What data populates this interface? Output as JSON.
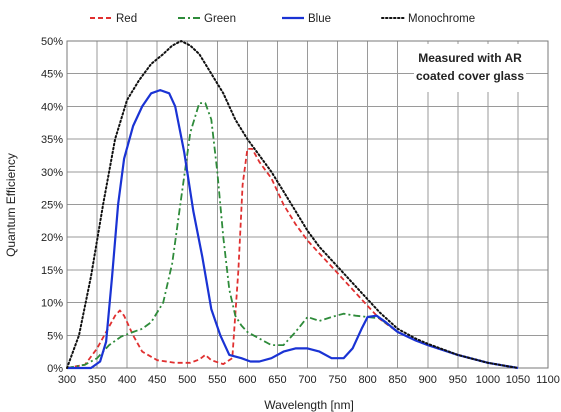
{
  "chart_data": {
    "type": "line",
    "title": "",
    "xlabel": "Wavelength [nm]",
    "ylabel": "Quantum Efficiency",
    "xlim": [
      300,
      1100
    ],
    "ylim": [
      0,
      50
    ],
    "x_ticks": [
      300,
      350,
      400,
      450,
      500,
      550,
      600,
      650,
      700,
      750,
      800,
      850,
      900,
      950,
      1000,
      1050,
      1100
    ],
    "x_tick_labels": [
      "300",
      "350",
      "400",
      "450",
      "500",
      "550",
      "600",
      "650",
      "700",
      "750",
      "800",
      "850",
      "900",
      "950",
      "1000",
      "1050",
      "1100"
    ],
    "y_ticks": [
      0,
      5,
      10,
      15,
      20,
      25,
      30,
      35,
      40,
      45,
      50
    ],
    "y_tick_labels": [
      "0%",
      "5%",
      "10%",
      "15%",
      "20%",
      "25%",
      "30%",
      "35%",
      "40%",
      "45%",
      "50%"
    ],
    "grid": true,
    "legend_position": "top",
    "annotation": [
      "Measured with AR",
      "coated cover glass"
    ],
    "series": [
      {
        "name": "Red",
        "color": "#e03030",
        "dash": "dashed",
        "points": [
          [
            300,
            0
          ],
          [
            330,
            0.5
          ],
          [
            350,
            3
          ],
          [
            365,
            5.5
          ],
          [
            380,
            8
          ],
          [
            388,
            8.8
          ],
          [
            395,
            8
          ],
          [
            410,
            5
          ],
          [
            425,
            2.5
          ],
          [
            450,
            1.2
          ],
          [
            480,
            0.8
          ],
          [
            505,
            0.8
          ],
          [
            520,
            1.3
          ],
          [
            530,
            2
          ],
          [
            540,
            1.2
          ],
          [
            560,
            0.6
          ],
          [
            575,
            1.5
          ],
          [
            585,
            15
          ],
          [
            592,
            28
          ],
          [
            600,
            33.5
          ],
          [
            608,
            33.5
          ],
          [
            620,
            31.5
          ],
          [
            640,
            29
          ],
          [
            660,
            25
          ],
          [
            680,
            22
          ],
          [
            700,
            19.5
          ],
          [
            720,
            17.5
          ],
          [
            740,
            15.5
          ],
          [
            760,
            13.5
          ],
          [
            780,
            11.5
          ],
          [
            800,
            9.5
          ],
          [
            820,
            7.5
          ],
          [
            850,
            5.5
          ],
          [
            880,
            4.2
          ],
          [
            900,
            3.5
          ],
          [
            950,
            2
          ],
          [
            1000,
            0.8
          ],
          [
            1050,
            0
          ]
        ]
      },
      {
        "name": "Green",
        "color": "#2e8b3a",
        "dash": "dashdot",
        "points": [
          [
            300,
            0
          ],
          [
            330,
            0.5
          ],
          [
            350,
            1.5
          ],
          [
            370,
            3.5
          ],
          [
            390,
            4.8
          ],
          [
            410,
            5.5
          ],
          [
            425,
            6
          ],
          [
            440,
            7
          ],
          [
            460,
            10
          ],
          [
            475,
            16
          ],
          [
            490,
            26
          ],
          [
            505,
            36
          ],
          [
            520,
            40.5
          ],
          [
            530,
            40.5
          ],
          [
            540,
            38
          ],
          [
            550,
            30
          ],
          [
            560,
            20
          ],
          [
            570,
            12
          ],
          [
            580,
            8
          ],
          [
            590,
            6.5
          ],
          [
            600,
            5.5
          ],
          [
            620,
            4.5
          ],
          [
            640,
            3.5
          ],
          [
            660,
            3.5
          ],
          [
            680,
            5.5
          ],
          [
            700,
            7.8
          ],
          [
            720,
            7.2
          ],
          [
            740,
            7.8
          ],
          [
            760,
            8.3
          ],
          [
            780,
            8
          ],
          [
            800,
            7.8
          ],
          [
            820,
            7.6
          ],
          [
            850,
            5.5
          ],
          [
            880,
            4.2
          ],
          [
            900,
            3.5
          ],
          [
            950,
            2
          ],
          [
            1000,
            0.8
          ],
          [
            1050,
            0
          ]
        ]
      },
      {
        "name": "Blue",
        "color": "#1a33d4",
        "dash": "solid",
        "points": [
          [
            300,
            0
          ],
          [
            340,
            0
          ],
          [
            355,
            1
          ],
          [
            365,
            4
          ],
          [
            375,
            14
          ],
          [
            385,
            25
          ],
          [
            395,
            32
          ],
          [
            410,
            37
          ],
          [
            425,
            40
          ],
          [
            440,
            42
          ],
          [
            455,
            42.5
          ],
          [
            470,
            42
          ],
          [
            480,
            40
          ],
          [
            495,
            33
          ],
          [
            510,
            24
          ],
          [
            525,
            17
          ],
          [
            540,
            9
          ],
          [
            555,
            5
          ],
          [
            570,
            2
          ],
          [
            590,
            1.5
          ],
          [
            605,
            1
          ],
          [
            620,
            1
          ],
          [
            640,
            1.5
          ],
          [
            660,
            2.5
          ],
          [
            680,
            3
          ],
          [
            700,
            3
          ],
          [
            720,
            2.5
          ],
          [
            740,
            1.5
          ],
          [
            760,
            1.5
          ],
          [
            775,
            3
          ],
          [
            790,
            6
          ],
          [
            800,
            7.8
          ],
          [
            815,
            8
          ],
          [
            830,
            7
          ],
          [
            850,
            5.5
          ],
          [
            880,
            4.2
          ],
          [
            900,
            3.5
          ],
          [
            950,
            2
          ],
          [
            1000,
            0.8
          ],
          [
            1050,
            0
          ]
        ]
      },
      {
        "name": "Monochrome",
        "color": "#111111",
        "dash": "dotted",
        "points": [
          [
            300,
            0
          ],
          [
            320,
            5
          ],
          [
            340,
            14
          ],
          [
            360,
            25
          ],
          [
            380,
            35
          ],
          [
            400,
            41
          ],
          [
            420,
            44
          ],
          [
            440,
            46.5
          ],
          [
            460,
            48
          ],
          [
            475,
            49.3
          ],
          [
            490,
            50
          ],
          [
            505,
            49.3
          ],
          [
            520,
            48
          ],
          [
            540,
            45
          ],
          [
            560,
            42
          ],
          [
            580,
            38
          ],
          [
            600,
            35
          ],
          [
            620,
            32.5
          ],
          [
            640,
            30
          ],
          [
            660,
            27
          ],
          [
            680,
            24
          ],
          [
            700,
            21
          ],
          [
            720,
            18.5
          ],
          [
            740,
            16.5
          ],
          [
            760,
            14.5
          ],
          [
            780,
            12.5
          ],
          [
            800,
            10.5
          ],
          [
            820,
            8.5
          ],
          [
            850,
            6
          ],
          [
            880,
            4.5
          ],
          [
            900,
            3.7
          ],
          [
            950,
            2
          ],
          [
            1000,
            0.8
          ],
          [
            1050,
            0
          ]
        ]
      }
    ]
  }
}
